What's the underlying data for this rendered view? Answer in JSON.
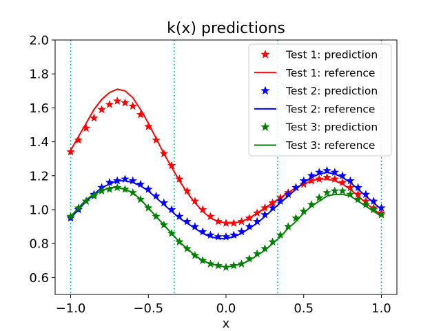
{
  "chart_data": {
    "type": "line",
    "title": "k(x) predictions",
    "xlabel": "x",
    "ylabel": "",
    "xlim": [
      -1.1,
      1.1
    ],
    "ylim": [
      0.5,
      2.0
    ],
    "xticks": [
      -1.0,
      -0.5,
      0.0,
      0.5,
      1.0
    ],
    "xtick_labels": [
      "−1.0",
      "−0.5",
      "0.0",
      "0.5",
      "1.0"
    ],
    "yticks": [
      0.6,
      0.8,
      1.0,
      1.2,
      1.4,
      1.6,
      1.8,
      2.0
    ],
    "ytick_labels": [
      "0.6",
      "0.8",
      "1.0",
      "1.2",
      "1.4",
      "1.6",
      "1.8",
      "2.0"
    ],
    "vlines": [
      -1.0,
      -0.333,
      0.333,
      1.0
    ],
    "vline_color": "#00bfbf",
    "legend_location": "top-right",
    "series": [
      {
        "name": "Test 1: prediction",
        "kind": "markers",
        "color": "#ff0000",
        "x": [
          -1.0,
          -0.95,
          -0.9,
          -0.85,
          -0.8,
          -0.75,
          -0.7,
          -0.65,
          -0.6,
          -0.55,
          -0.5,
          -0.45,
          -0.4,
          -0.35,
          -0.3,
          -0.25,
          -0.2,
          -0.15,
          -0.1,
          -0.05,
          0.0,
          0.05,
          0.1,
          0.15,
          0.2,
          0.25,
          0.3,
          0.35,
          0.4,
          0.45,
          0.5,
          0.55,
          0.6,
          0.65,
          0.7,
          0.75,
          0.8,
          0.85,
          0.9,
          0.95,
          1.0
        ],
        "y": [
          1.34,
          1.41,
          1.48,
          1.54,
          1.59,
          1.62,
          1.64,
          1.63,
          1.61,
          1.56,
          1.49,
          1.41,
          1.33,
          1.26,
          1.18,
          1.11,
          1.05,
          1.0,
          0.96,
          0.93,
          0.92,
          0.92,
          0.93,
          0.95,
          0.98,
          1.01,
          1.04,
          1.07,
          1.1,
          1.13,
          1.15,
          1.17,
          1.18,
          1.19,
          1.18,
          1.16,
          1.13,
          1.09,
          1.05,
          1.01,
          0.98
        ]
      },
      {
        "name": "Test 1: reference",
        "kind": "line",
        "color": "#ff0000",
        "x": [
          -1.0,
          -0.95,
          -0.9,
          -0.85,
          -0.8,
          -0.75,
          -0.7,
          -0.65,
          -0.6,
          -0.55,
          -0.5,
          -0.45,
          -0.4,
          -0.35,
          -0.3,
          -0.25,
          -0.2,
          -0.15,
          -0.1,
          -0.05,
          0.0,
          0.05,
          0.1,
          0.15,
          0.2,
          0.25,
          0.3,
          0.35,
          0.4,
          0.45,
          0.5,
          0.55,
          0.6,
          0.65,
          0.7,
          0.75,
          0.8,
          0.85,
          0.9,
          0.95,
          1.0
        ],
        "y": [
          1.35,
          1.43,
          1.51,
          1.59,
          1.65,
          1.69,
          1.71,
          1.7,
          1.66,
          1.59,
          1.51,
          1.42,
          1.33,
          1.25,
          1.17,
          1.1,
          1.04,
          0.99,
          0.95,
          0.93,
          0.92,
          0.92,
          0.93,
          0.95,
          0.98,
          1.01,
          1.04,
          1.07,
          1.1,
          1.13,
          1.15,
          1.17,
          1.18,
          1.18,
          1.17,
          1.15,
          1.12,
          1.08,
          1.04,
          1.0,
          0.97
        ]
      },
      {
        "name": "Test 2: prediction",
        "kind": "markers",
        "color": "#0000ff",
        "x": [
          -1.0,
          -0.95,
          -0.9,
          -0.85,
          -0.8,
          -0.75,
          -0.7,
          -0.65,
          -0.6,
          -0.55,
          -0.5,
          -0.45,
          -0.4,
          -0.35,
          -0.3,
          -0.25,
          -0.2,
          -0.15,
          -0.1,
          -0.05,
          0.0,
          0.05,
          0.1,
          0.15,
          0.2,
          0.25,
          0.3,
          0.35,
          0.4,
          0.45,
          0.5,
          0.55,
          0.6,
          0.65,
          0.7,
          0.75,
          0.8,
          0.85,
          0.9,
          0.95,
          1.0
        ],
        "y": [
          0.95,
          1.0,
          1.05,
          1.09,
          1.13,
          1.16,
          1.17,
          1.18,
          1.17,
          1.15,
          1.12,
          1.08,
          1.04,
          1.0,
          0.96,
          0.93,
          0.9,
          0.87,
          0.85,
          0.84,
          0.84,
          0.85,
          0.87,
          0.9,
          0.93,
          0.97,
          1.01,
          1.05,
          1.09,
          1.13,
          1.17,
          1.2,
          1.22,
          1.23,
          1.22,
          1.2,
          1.17,
          1.13,
          1.09,
          1.05,
          1.01
        ]
      },
      {
        "name": "Test 2: reference",
        "kind": "line",
        "color": "#0000ff",
        "x": [
          -1.0,
          -0.95,
          -0.9,
          -0.85,
          -0.8,
          -0.75,
          -0.7,
          -0.65,
          -0.6,
          -0.55,
          -0.5,
          -0.45,
          -0.4,
          -0.35,
          -0.3,
          -0.25,
          -0.2,
          -0.15,
          -0.1,
          -0.05,
          0.0,
          0.05,
          0.1,
          0.15,
          0.2,
          0.25,
          0.3,
          0.35,
          0.4,
          0.45,
          0.5,
          0.55,
          0.6,
          0.65,
          0.7,
          0.75,
          0.8,
          0.85,
          0.9,
          0.95,
          1.0
        ],
        "y": [
          0.95,
          1.0,
          1.05,
          1.09,
          1.13,
          1.15,
          1.17,
          1.17,
          1.16,
          1.14,
          1.11,
          1.07,
          1.03,
          0.99,
          0.95,
          0.92,
          0.89,
          0.86,
          0.84,
          0.83,
          0.83,
          0.84,
          0.86,
          0.89,
          0.92,
          0.96,
          1.0,
          1.04,
          1.08,
          1.12,
          1.16,
          1.19,
          1.21,
          1.22,
          1.21,
          1.19,
          1.16,
          1.12,
          1.08,
          1.04,
          1.0
        ]
      },
      {
        "name": "Test 3: prediction",
        "kind": "markers",
        "color": "#008000",
        "x": [
          -1.0,
          -0.95,
          -0.9,
          -0.85,
          -0.8,
          -0.75,
          -0.7,
          -0.65,
          -0.6,
          -0.55,
          -0.5,
          -0.45,
          -0.4,
          -0.35,
          -0.3,
          -0.25,
          -0.2,
          -0.15,
          -0.1,
          -0.05,
          0.0,
          0.05,
          0.1,
          0.15,
          0.2,
          0.25,
          0.3,
          0.35,
          0.4,
          0.45,
          0.5,
          0.55,
          0.6,
          0.65,
          0.7,
          0.75,
          0.8,
          0.85,
          0.9,
          0.95,
          1.0
        ],
        "y": [
          0.96,
          1.01,
          1.05,
          1.08,
          1.11,
          1.12,
          1.13,
          1.12,
          1.1,
          1.06,
          1.01,
          0.96,
          0.91,
          0.86,
          0.81,
          0.77,
          0.73,
          0.7,
          0.68,
          0.67,
          0.66,
          0.67,
          0.68,
          0.71,
          0.74,
          0.77,
          0.81,
          0.85,
          0.9,
          0.95,
          0.99,
          1.03,
          1.07,
          1.1,
          1.11,
          1.11,
          1.09,
          1.06,
          1.03,
          1.0,
          0.97
        ]
      },
      {
        "name": "Test 3: reference",
        "kind": "line",
        "color": "#008000",
        "x": [
          -1.0,
          -0.95,
          -0.9,
          -0.85,
          -0.8,
          -0.75,
          -0.7,
          -0.65,
          -0.6,
          -0.55,
          -0.5,
          -0.45,
          -0.4,
          -0.35,
          -0.3,
          -0.25,
          -0.2,
          -0.15,
          -0.1,
          -0.05,
          0.0,
          0.05,
          0.1,
          0.15,
          0.2,
          0.25,
          0.3,
          0.35,
          0.4,
          0.45,
          0.5,
          0.55,
          0.6,
          0.65,
          0.7,
          0.75,
          0.8,
          0.85,
          0.9,
          0.95,
          1.0
        ],
        "y": [
          0.96,
          1.01,
          1.06,
          1.09,
          1.11,
          1.13,
          1.13,
          1.12,
          1.1,
          1.06,
          1.01,
          0.96,
          0.91,
          0.86,
          0.81,
          0.77,
          0.73,
          0.7,
          0.68,
          0.67,
          0.66,
          0.67,
          0.68,
          0.7,
          0.73,
          0.76,
          0.8,
          0.84,
          0.89,
          0.93,
          0.98,
          1.02,
          1.05,
          1.08,
          1.09,
          1.09,
          1.08,
          1.05,
          1.02,
          0.99,
          0.96
        ]
      }
    ]
  }
}
